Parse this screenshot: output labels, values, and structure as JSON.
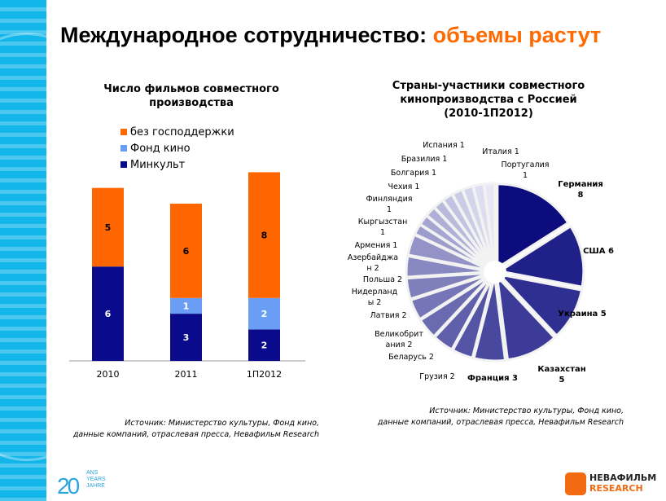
{
  "header": {
    "title_main": "Международное сотрудничество: ",
    "title_accent": "объемы растут"
  },
  "colors": {
    "accent": "#ff6a00",
    "minkult": "#0a0a8c",
    "fond_kino": "#6a9ef5",
    "bez": "#ff6600",
    "stripe": "#12b6ea"
  },
  "chart_data": [
    {
      "type": "bar",
      "stacked": true,
      "title_line1": "Число фильмов совместного",
      "title_line2": "производства",
      "categories": [
        "2010",
        "2011",
        "1П2012"
      ],
      "series": [
        {
          "name": "Минкульт",
          "values": [
            6,
            3,
            2
          ],
          "color": "#0a0a8c"
        },
        {
          "name": "Фонд кино",
          "values": [
            0,
            1,
            2
          ],
          "color": "#6a9ef5"
        },
        {
          "name": "без господдержки",
          "values": [
            5,
            6,
            8
          ],
          "color": "#ff6600"
        }
      ],
      "legend_order": [
        "без господдержки",
        "Фонд кино",
        "Минкульт"
      ],
      "legend_placement": "top",
      "grid": false,
      "source_line1": "Источник: Министерство культуры, Фонд кино,",
      "source_line2": "данные компаний, отраслевая пресса, Невафильм Research"
    },
    {
      "type": "pie",
      "exploded": true,
      "title_line1": "Страны-участники совместного",
      "title_line2": "кинопроизводства с Россией",
      "title_line3": "(2010-1П2012)",
      "slices": [
        {
          "label": "Германия",
          "value": 8
        },
        {
          "label": "США",
          "value": 6
        },
        {
          "label": "Украина",
          "value": 5
        },
        {
          "label": "Казахстан",
          "value": 5
        },
        {
          "label": "Франция",
          "value": 3
        },
        {
          "label": "Грузия",
          "value": 2
        },
        {
          "label": "Беларусь",
          "value": 2
        },
        {
          "label": "Великобритания",
          "value": 2
        },
        {
          "label": "Латвия",
          "value": 2
        },
        {
          "label": "Нидерланды",
          "value": 2
        },
        {
          "label": "Польша",
          "value": 2
        },
        {
          "label": "Азербайджан",
          "value": 2
        },
        {
          "label": "Армения",
          "value": 1
        },
        {
          "label": "Кыргызстан",
          "value": 1
        },
        {
          "label": "Финляндия",
          "value": 1
        },
        {
          "label": "Чехия",
          "value": 1
        },
        {
          "label": "Болгария",
          "value": 1
        },
        {
          "label": "Бразилия",
          "value": 1
        },
        {
          "label": "Испания",
          "value": 1
        },
        {
          "label": "Италия",
          "value": 1
        },
        {
          "label": "Португалия",
          "value": 1
        }
      ],
      "color_dark": "#0c0c7e",
      "color_light": "#e6e6f4",
      "source_line1": "Источник: Министерство культуры, Фонд кино,",
      "source_line2": "данные компаний, отраслевая пресса, Невафильм Research"
    }
  ],
  "footer": {
    "logo_20_number": "20",
    "logo_20_text": "ANS YEARS JAHRE",
    "nevafilm_line1": "НЕВАФИЛЬМ",
    "nevafilm_line2": "RESEARCH"
  }
}
